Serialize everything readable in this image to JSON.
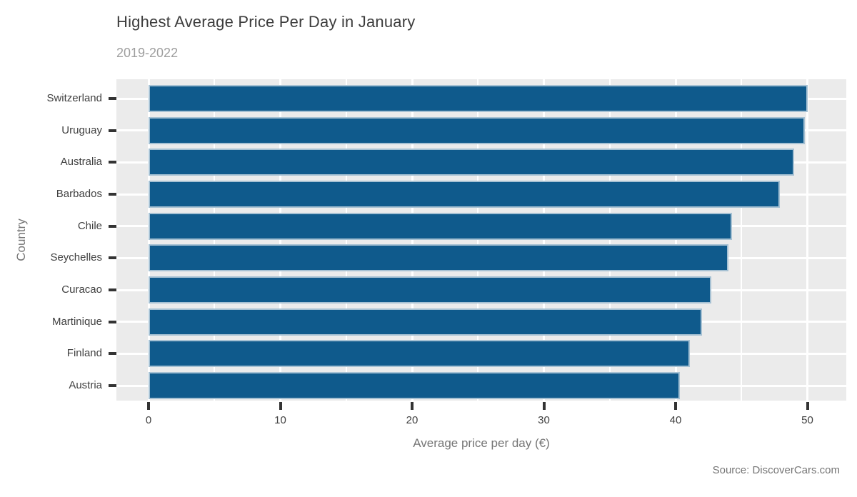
{
  "footer": {
    "source": "Source: DiscoverCars.com"
  },
  "chart_data": {
    "type": "bar",
    "orientation": "horizontal",
    "title": "Highest Average Price Per Day in January",
    "subtitle": "2019-2022",
    "xlabel": "Average price per day (€)",
    "ylabel": "Country",
    "categories": [
      "Switzerland",
      "Uruguay",
      "Australia",
      "Barbados",
      "Chile",
      "Seychelles",
      "Curacao",
      "Martinique",
      "Finland",
      "Austria"
    ],
    "values": [
      50.0,
      49.8,
      49.0,
      47.9,
      44.3,
      44.0,
      42.7,
      42.0,
      41.1,
      40.3
    ],
    "xlim": [
      0,
      50
    ],
    "x_ticks": [
      0,
      10,
      20,
      30,
      40,
      50
    ],
    "x_minor_ticks": [
      5,
      15,
      25,
      35,
      45
    ],
    "grid": "on",
    "legend": "none",
    "colors": {
      "bar_fill": "#0F5A8C",
      "bar_stroke": "#A6C1D3",
      "panel_bg": "#EBEBEB",
      "grid": "#FFFFFF",
      "tick": "#333333",
      "label": "#404040",
      "axis_title": "#757575",
      "title": "#3C3C3C",
      "subtitle": "#9E9E9E",
      "source": "#757575"
    }
  }
}
